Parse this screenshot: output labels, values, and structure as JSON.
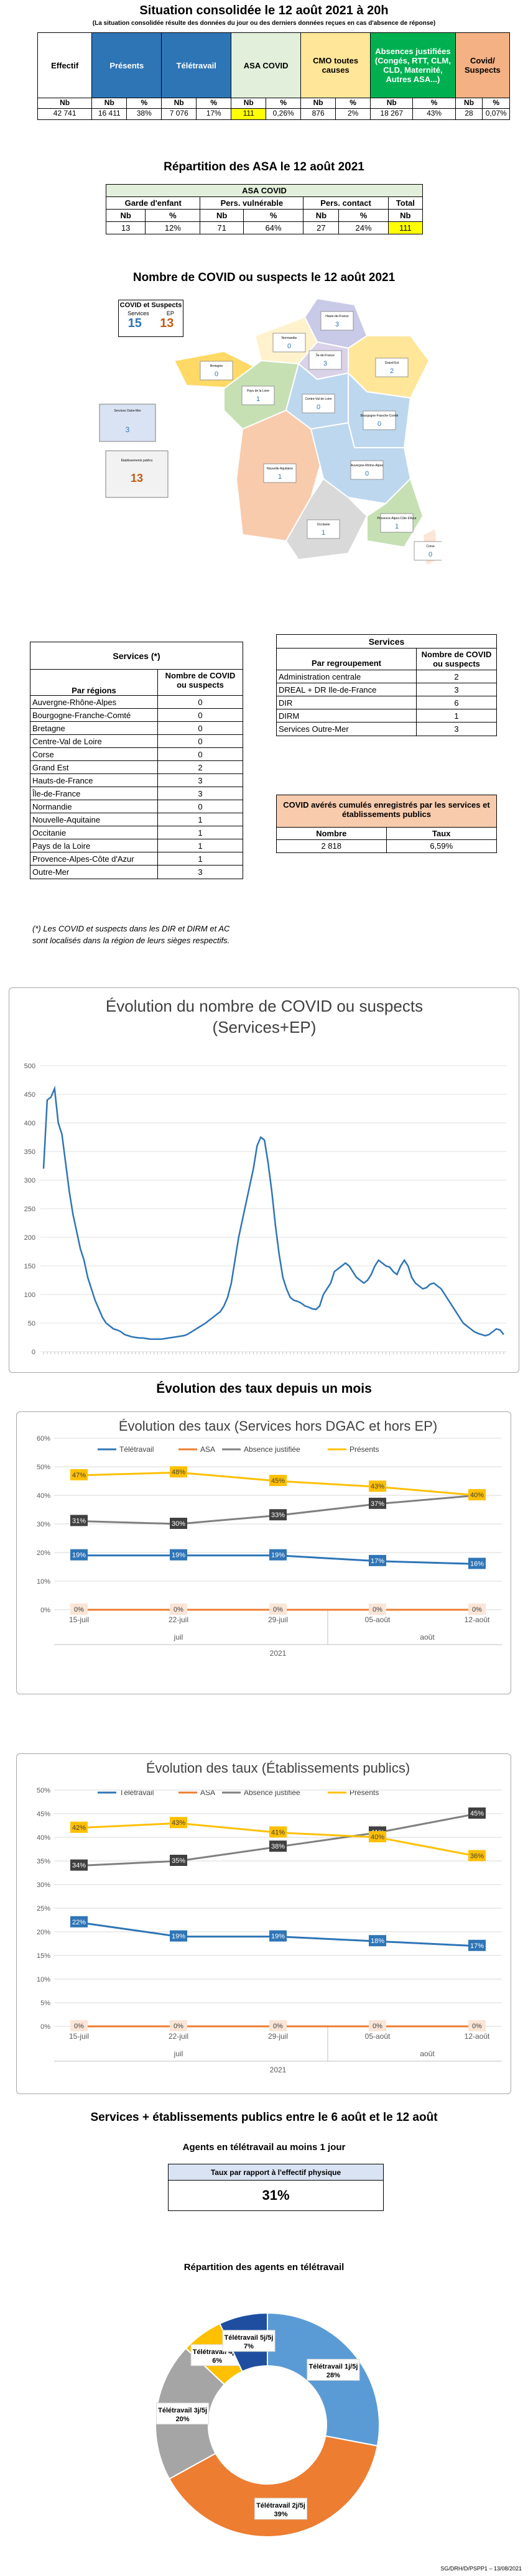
{
  "header": {
    "title": "Situation consolidée le 12 août 2021 à 20h",
    "subtitle": "(La situation consolidée résulte des données du jour ou des derniers données reçues en cas d'absence de réponse)"
  },
  "summary": {
    "cols": [
      {
        "label": "Effectif",
        "sub": [
          "Nb"
        ],
        "vals": [
          "42 741"
        ],
        "bg": "#ffffff",
        "fg": "#000000"
      },
      {
        "label": "Présents",
        "sub": [
          "Nb",
          "%"
        ],
        "vals": [
          "16 411",
          "38%"
        ],
        "bg": "#2e75b6",
        "fg": "#ffffff"
      },
      {
        "label": "Télétravail",
        "sub": [
          "Nb",
          "%"
        ],
        "vals": [
          "7 076",
          "17%"
        ],
        "bg": "#2e75b6",
        "fg": "#ffffff"
      },
      {
        "label": "ASA COVID",
        "sub": [
          "Nb",
          "%"
        ],
        "vals": [
          "111",
          "0,26%"
        ],
        "bg": "#e2efda",
        "fg": "#000000"
      },
      {
        "label": "CMO toutes causes",
        "sub": [
          "Nb",
          "%"
        ],
        "vals": [
          "876",
          "2%"
        ],
        "bg": "#ffe699",
        "fg": "#000000"
      },
      {
        "label": "Absences justifiées (Congés, RTT, CLM, CLD, Maternité, Autres ASA...)",
        "sub": [
          "Nb",
          "%"
        ],
        "vals": [
          "18 267",
          "43%"
        ],
        "bg": "#00b050",
        "fg": "#ffffff"
      },
      {
        "label": "Covid/ Suspects",
        "sub": [
          "Nb",
          "%"
        ],
        "vals": [
          "28",
          "0,07%"
        ],
        "bg": "#f4b183",
        "fg": "#000000"
      }
    ]
  },
  "asa": {
    "title": "Répartition des ASA le 12 août 2021",
    "header": "ASA COVID",
    "groups": [
      "Garde d'enfant",
      "Pers. vulnérable",
      "Pers. contact",
      "Total"
    ],
    "sub": [
      "Nb",
      "%",
      "Nb",
      "%",
      "Nb",
      "%",
      "Nb"
    ],
    "vals": [
      "13",
      "12%",
      "71",
      "64%",
      "27",
      "24%",
      "111"
    ]
  },
  "map": {
    "title": "Nombre de COVID ou suspects le 12 août 2021",
    "legend_title": "COVID et Suspects",
    "legend_services": "Services",
    "legend_ep": "EP",
    "legend_services_val": "15",
    "legend_ep_val": "13",
    "regions": [
      {
        "name": "Hauts-de-France",
        "val": "3"
      },
      {
        "name": "Normandie",
        "val": "0"
      },
      {
        "name": "Île-de-France",
        "val": "3"
      },
      {
        "name": "Grand Est",
        "val": "2"
      },
      {
        "name": "Bretagne",
        "val": "0"
      },
      {
        "name": "Pays de la Loire",
        "val": "1"
      },
      {
        "name": "Centre-Val de Loire",
        "val": "0"
      },
      {
        "name": "Bourgogne-Franche-Comté",
        "val": "0"
      },
      {
        "name": "Nouvelle-Aquitaine",
        "val": "1"
      },
      {
        "name": "Auvergne-Rhône-Alpes",
        "val": "0"
      },
      {
        "name": "Occitanie",
        "val": "1"
      },
      {
        "name": "Provence-Alpes-Côte d'Azur",
        "val": "1"
      },
      {
        "name": "Corse",
        "val": "0"
      },
      {
        "name": "Services Outre-Mer",
        "val": "3"
      },
      {
        "name": "Établissements publics",
        "val": "13"
      }
    ]
  },
  "services_regions": {
    "title": "Services (*)",
    "col1": "Par régions",
    "col2": "Nombre de COVID ou suspects",
    "rows": [
      [
        "Auvergne-Rhône-Alpes",
        "0"
      ],
      [
        "Bourgogne-Franche-Comté",
        "0"
      ],
      [
        "Bretagne",
        "0"
      ],
      [
        "Centre-Val de Loire",
        "0"
      ],
      [
        "Corse",
        "0"
      ],
      [
        "Grand Est",
        "2"
      ],
      [
        "Hauts-de-France",
        "3"
      ],
      [
        "Île-de-France",
        "3"
      ],
      [
        "Normandie",
        "0"
      ],
      [
        "Nouvelle-Aquitaine",
        "1"
      ],
      [
        "Occitanie",
        "1"
      ],
      [
        "Pays de la Loire",
        "1"
      ],
      [
        "Provence-Alpes-Côte d'Azur",
        "1"
      ],
      [
        "Outre-Mer",
        "3"
      ]
    ],
    "note": "(*) Les COVID et suspects dans les DIR et DIRM et AC sont localisés dans la région de leurs sièges respectifs."
  },
  "services_groups": {
    "title": "Services",
    "col1": "Par regroupement",
    "col2": "Nombre de COVID ou suspects",
    "rows": [
      [
        "Administration centrale",
        "2"
      ],
      [
        "DREAL + DR Ile-de-France",
        "3"
      ],
      [
        "DIR",
        "6"
      ],
      [
        "DIRM",
        "1"
      ],
      [
        "Services Outre-Mer",
        "3"
      ]
    ]
  },
  "cumul": {
    "title": "COVID avérés cumulés enregistrés par les services et établissements publics",
    "col1": "Nombre",
    "col2": "Taux",
    "val1": "2 818",
    "val2": "6,59%"
  },
  "evolution_title": "Évolution des taux depuis un mois",
  "section_week": "Services + établissements publics entre le 6 août et le 12 août",
  "tele_box": {
    "title": "Agents en télétravail au moins 1 jour",
    "label": "Taux par rapport à l'effectif physique",
    "value": "31%"
  },
  "donut": {
    "title": "Répartition des agents en télétravail",
    "slices": [
      {
        "label": "Télétravail 1j/5j",
        "pct": "28%",
        "value": 28,
        "color": "#5b9bd5"
      },
      {
        "label": "Télétravail 2j/5j",
        "pct": "39%",
        "value": 39,
        "color": "#ed7d31"
      },
      {
        "label": "Télétravail 3j/5j",
        "pct": "20%",
        "value": 20,
        "color": "#a5a5a5"
      },
      {
        "label": "Télétravail 4j/5j",
        "pct": "6%",
        "value": 6,
        "color": "#ffc000"
      },
      {
        "label": "Télétravail 5j/5j",
        "pct": "7%",
        "value": 7,
        "color": "#1f4ea1"
      }
    ]
  },
  "footer": "SG/DRH/D/PSPP1 – 13/08/2021",
  "chart_data": [
    {
      "type": "line",
      "title": "Évolution du nombre de COVID ou suspects (Services+EP)",
      "ylim": [
        0,
        500
      ],
      "yticks": [
        0,
        50,
        100,
        150,
        200,
        250,
        300,
        350,
        400,
        450,
        500
      ],
      "series": [
        {
          "values": [
            320,
            440,
            445,
            460,
            400,
            380,
            330,
            280,
            240,
            210,
            180,
            160,
            130,
            110,
            90,
            75,
            60,
            50,
            45,
            40,
            38,
            35,
            30,
            28,
            26,
            25,
            24,
            24,
            23,
            22,
            22,
            22,
            22,
            23,
            24,
            25,
            26,
            27,
            28,
            30,
            34,
            38,
            42,
            46,
            50,
            55,
            60,
            65,
            70,
            80,
            95,
            120,
            160,
            200,
            230,
            260,
            290,
            320,
            360,
            375,
            370,
            330,
            280,
            220,
            170,
            130,
            110,
            95,
            90,
            88,
            85,
            80,
            78,
            75,
            74,
            80,
            100,
            110,
            120,
            140,
            145,
            150,
            155,
            150,
            140,
            130,
            125,
            120,
            125,
            135,
            150,
            160,
            155,
            150,
            148,
            140,
            135,
            150,
            160,
            150,
            130,
            120,
            115,
            110,
            112,
            118,
            120,
            115,
            110,
            100,
            90,
            80,
            70,
            60,
            50,
            45,
            40,
            35,
            32,
            30,
            28,
            30,
            35,
            40,
            38,
            30
          ]
        }
      ]
    },
    {
      "type": "line",
      "title": "Évolution des taux (Services hors DGAC et hors EP)",
      "categories": [
        "15-juil",
        "22-juil",
        "29-juil",
        "05-août",
        "12-août"
      ],
      "month_labels": [
        "juil",
        "août"
      ],
      "year_label": "2021",
      "ylim": [
        0,
        60
      ],
      "yticks": [
        "0%",
        "10%",
        "20%",
        "30%",
        "40%",
        "50%",
        "60%"
      ],
      "series": [
        {
          "name": "Télétravail",
          "values": [
            19,
            19,
            19,
            17,
            16
          ],
          "labels": [
            "19%",
            "19%",
            "19%",
            "17%",
            "16%"
          ],
          "color": "#2e75b6"
        },
        {
          "name": "ASA",
          "values": [
            0,
            0,
            0,
            0,
            0
          ],
          "labels": [
            "0%",
            "0%",
            "0%",
            "0%",
            "0%"
          ],
          "color": "#ed7d31"
        },
        {
          "name": "Absence justifiée",
          "values": [
            31,
            30,
            33,
            37,
            40
          ],
          "labels": [
            "31%",
            "30%",
            "33%",
            "37%",
            "40%"
          ],
          "color": "#808080"
        },
        {
          "name": "Présents",
          "values": [
            47,
            48,
            45,
            43,
            40
          ],
          "labels": [
            "47%",
            "48%",
            "45%",
            "43%",
            "40%"
          ],
          "color": "#ffc000"
        }
      ]
    },
    {
      "type": "line",
      "title": "Évolution des taux (Établissements publics)",
      "categories": [
        "15-juil",
        "22-juil",
        "29-juil",
        "05-août",
        "12-août"
      ],
      "month_labels": [
        "juil",
        "août"
      ],
      "year_label": "2021",
      "ylim": [
        0,
        50
      ],
      "yticks": [
        "0%",
        "5%",
        "10%",
        "15%",
        "20%",
        "25%",
        "30%",
        "35%",
        "40%",
        "45%",
        "50%"
      ],
      "series": [
        {
          "name": "Télétravail",
          "values": [
            22,
            19,
            19,
            18,
            17
          ],
          "labels": [
            "22%",
            "19%",
            "19%",
            "18%",
            "17%"
          ],
          "color": "#2e75b6"
        },
        {
          "name": "ASA",
          "values": [
            0,
            0,
            0,
            0,
            0
          ],
          "labels": [
            "0%",
            "0%",
            "0%",
            "0%",
            "0%"
          ],
          "color": "#ed7d31"
        },
        {
          "name": "Absence justifiée",
          "values": [
            34,
            35,
            38,
            41,
            45
          ],
          "labels": [
            "34%",
            "35%",
            "38%",
            "41%",
            "45%"
          ],
          "color": "#808080"
        },
        {
          "name": "Présents",
          "values": [
            42,
            43,
            41,
            40,
            36
          ],
          "labels": [
            "42%",
            "43%",
            "41%",
            "40%",
            "36%"
          ],
          "color": "#ffc000"
        }
      ]
    }
  ]
}
